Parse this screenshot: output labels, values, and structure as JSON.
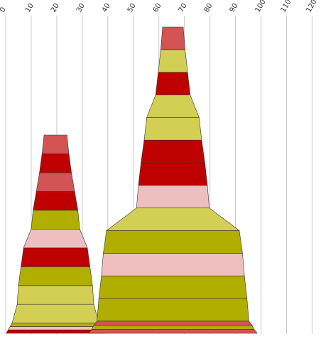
{
  "chart_data": {
    "type": "bar",
    "orientation": "horizontal-stacked-trapezoid",
    "x_ticks": [
      "0",
      "10",
      "20",
      "30",
      "40",
      "50",
      "60",
      "70",
      "80",
      "90",
      "100",
      "110",
      "120"
    ],
    "xlim": [
      0,
      120
    ],
    "grid": true,
    "colors": {
      "red_dark": "#bf0000",
      "red_light": "#d45355",
      "pink": "#efbfbf",
      "olive": "#b2ae00",
      "olive_light": "#d3cf55"
    },
    "towers": [
      {
        "center": 19.5,
        "layers": [
          {
            "width": 38.5,
            "color": "#bf0000"
          },
          {
            "width": 37.0,
            "color": "#efbfbf"
          },
          {
            "width": 35.5,
            "color": "#b2ae00"
          },
          {
            "width": 34.0,
            "color": "#d3cf55"
          },
          {
            "width": 30.0,
            "color": "#d3cf55"
          },
          {
            "width": 29.0,
            "color": "#b2ae00"
          },
          {
            "width": 27.0,
            "color": "#bf0000"
          },
          {
            "width": 25.0,
            "color": "#efbfbf"
          },
          {
            "width": 19.0,
            "color": "#b2ae00"
          },
          {
            "width": 17.5,
            "color": "#bf0000"
          },
          {
            "width": 15.0,
            "color": "#d45355"
          },
          {
            "width": 12.5,
            "color": "#bf0000"
          },
          {
            "width": 10.5,
            "color": "#d45355"
          }
        ]
      },
      {
        "center": 65.5,
        "layers": [
          {
            "width": 66.0,
            "color": "#d45355"
          },
          {
            "width": 63.5,
            "color": "#b2ae00"
          },
          {
            "width": 62.0,
            "color": "#d45355"
          },
          {
            "width": 59.5,
            "color": "#b2ae00"
          },
          {
            "width": 58.0,
            "color": "#b2ae00"
          },
          {
            "width": 56.0,
            "color": "#efbfbf"
          },
          {
            "width": 54.5,
            "color": "#b2ae00"
          },
          {
            "width": 52.0,
            "color": "#d3cf55"
          },
          {
            "width": 28.5,
            "color": "#efbfbf"
          },
          {
            "width": 27.0,
            "color": "#bf0000"
          },
          {
            "width": 25.0,
            "color": "#bf0000"
          },
          {
            "width": 22.5,
            "color": "#d3cf55"
          },
          {
            "width": 20.5,
            "color": "#d3cf55"
          },
          {
            "width": 13.5,
            "color": "#bf0000"
          },
          {
            "width": 11.5,
            "color": "#d3cf55"
          },
          {
            "width": 9.5,
            "color": "#d45355"
          }
        ]
      }
    ]
  }
}
